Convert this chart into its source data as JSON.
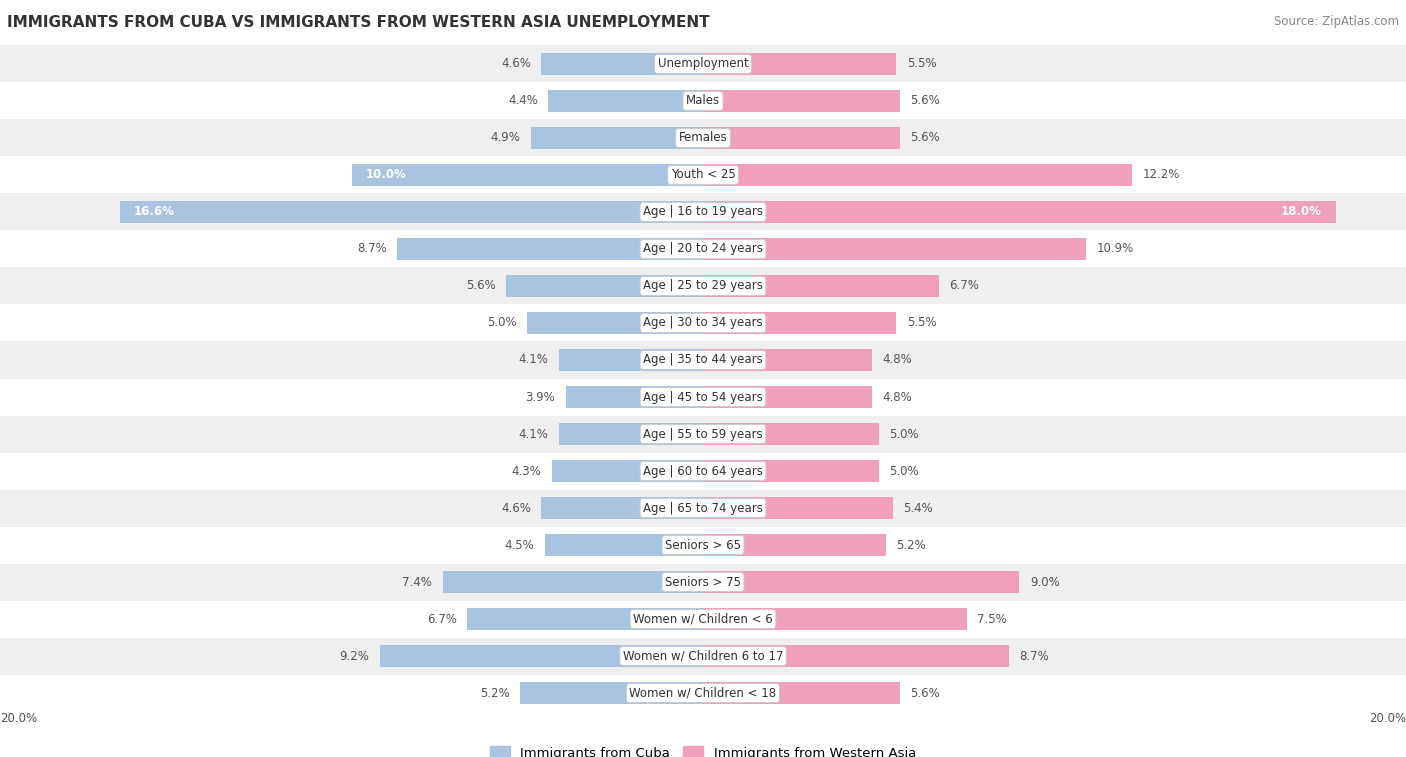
{
  "title": "IMMIGRANTS FROM CUBA VS IMMIGRANTS FROM WESTERN ASIA UNEMPLOYMENT",
  "source": "Source: ZipAtlas.com",
  "categories": [
    "Unemployment",
    "Males",
    "Females",
    "Youth < 25",
    "Age | 16 to 19 years",
    "Age | 20 to 24 years",
    "Age | 25 to 29 years",
    "Age | 30 to 34 years",
    "Age | 35 to 44 years",
    "Age | 45 to 54 years",
    "Age | 55 to 59 years",
    "Age | 60 to 64 years",
    "Age | 65 to 74 years",
    "Seniors > 65",
    "Seniors > 75",
    "Women w/ Children < 6",
    "Women w/ Children 6 to 17",
    "Women w/ Children < 18"
  ],
  "cuba_values": [
    4.6,
    4.4,
    4.9,
    10.0,
    16.6,
    8.7,
    5.6,
    5.0,
    4.1,
    3.9,
    4.1,
    4.3,
    4.6,
    4.5,
    7.4,
    6.7,
    9.2,
    5.2
  ],
  "west_asia_values": [
    5.5,
    5.6,
    5.6,
    12.2,
    18.0,
    10.9,
    6.7,
    5.5,
    4.8,
    4.8,
    5.0,
    5.0,
    5.4,
    5.2,
    9.0,
    7.5,
    8.7,
    5.6
  ],
  "cuba_color": "#a8c4e0",
  "west_asia_color": "#f0a0b8",
  "background_row_light": "#efefef",
  "background_row_white": "#ffffff",
  "xlim": 20.0,
  "bar_height": 0.6,
  "label_fontsize": 8.5,
  "cat_fontsize": 8.5,
  "legend_cuba": "Immigrants from Cuba",
  "legend_west_asia": "Immigrants from Western Asia",
  "title_fontsize": 11,
  "source_fontsize": 8.5
}
